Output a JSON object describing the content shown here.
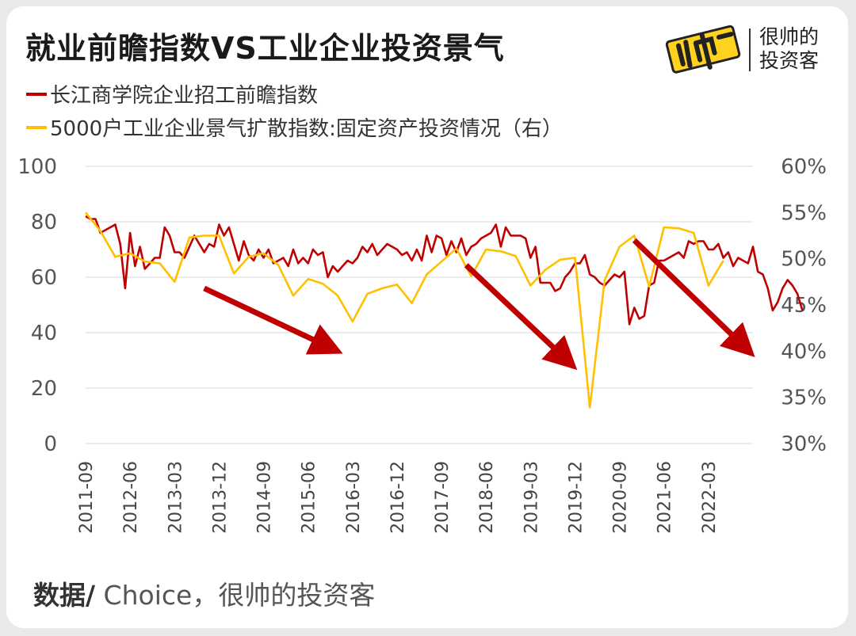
{
  "title": "就业前瞻指数VS工业企业投资景气",
  "brand": {
    "logo_text": "帅",
    "line1": "很帅的",
    "line2": "投资客"
  },
  "legend": [
    {
      "label": "长江商学院企业招工前瞻指数",
      "color": "#c00000"
    },
    {
      "label": "5000户工业企业景气扩散指数:固定资产投资情况（右）",
      "color": "#ffc000"
    }
  ],
  "source": {
    "prefix": "数据/",
    "text": " Choice，很帅的投资客"
  },
  "chart_data": {
    "type": "line",
    "left_axis": {
      "ticks": [
        "0",
        "20",
        "40",
        "60",
        "80",
        "100"
      ],
      "ylim": [
        0,
        100
      ]
    },
    "right_axis": {
      "ticks": [
        "30%",
        "35%",
        "40%",
        "45%",
        "50%",
        "55%",
        "60%"
      ],
      "ylim": [
        30,
        60
      ]
    },
    "x_ticks": [
      "2011-09",
      "2012-06",
      "2013-03",
      "2013-12",
      "2014-09",
      "2015-06",
      "2016-03",
      "2016-12",
      "2017-09",
      "2018-06",
      "2019-03",
      "2019-12",
      "2020-09",
      "2021-06",
      "2022-03"
    ],
    "x_start": "2011-09",
    "x_end": "2022-12",
    "grid": true,
    "series": [
      {
        "name": "长江商学院企业招工前瞻指数",
        "axis": "left",
        "color": "#c00000",
        "values": [
          82,
          81,
          81,
          76,
          77,
          78,
          79,
          72,
          56,
          76,
          64,
          71,
          63,
          65,
          67,
          67,
          78,
          75,
          69,
          69,
          67,
          71,
          75,
          72,
          69,
          72,
          71,
          79,
          75,
          78,
          72,
          66,
          73,
          68,
          66,
          70,
          67,
          70,
          65,
          66,
          67,
          64,
          70,
          65,
          67,
          65,
          70,
          68,
          69,
          60,
          64,
          62,
          64,
          66,
          65,
          67,
          71,
          69,
          72,
          68,
          70,
          72,
          71,
          70,
          68,
          69,
          66,
          70,
          66,
          75,
          69,
          75,
          74,
          68,
          73,
          69,
          74,
          68,
          71,
          72,
          74,
          75,
          76,
          79,
          71,
          78,
          75,
          75,
          75,
          74,
          67,
          71,
          58,
          58,
          58,
          55,
          56,
          60,
          62,
          65,
          65,
          68,
          61,
          60,
          58,
          57,
          59,
          61,
          60,
          62,
          43,
          49,
          45,
          46,
          57,
          58,
          66,
          66,
          67,
          68,
          69,
          67,
          73,
          72,
          73,
          73,
          70,
          70,
          72,
          67,
          69,
          64,
          67,
          66,
          65,
          71,
          62,
          61,
          56,
          48,
          51,
          56,
          59,
          57,
          54,
          48
        ]
      },
      {
        "name": "5000户工业企业景气扩散指数:固定资产投资情况（右）",
        "axis": "right",
        "color": "#ffc000",
        "values": [
          55.0,
          null,
          null,
          53.0,
          null,
          null,
          50.2,
          null,
          null,
          50.6,
          null,
          null,
          49.7,
          null,
          null,
          49.5,
          null,
          null,
          47.5,
          null,
          null,
          52.3,
          null,
          null,
          52.5,
          null,
          null,
          52.5,
          null,
          null,
          48.4,
          null,
          null,
          50.2,
          null,
          null,
          50.6,
          null,
          null,
          49.3,
          null,
          null,
          46.0,
          null,
          null,
          47.8,
          null,
          null,
          47.3,
          null,
          null,
          46.0,
          null,
          null,
          43.2,
          null,
          null,
          46.2,
          null,
          null,
          46.8,
          null,
          null,
          47.2,
          null,
          null,
          45.2,
          null,
          null,
          48.3,
          null,
          null,
          49.7,
          null,
          null,
          51.1,
          null,
          null,
          48.1,
          null,
          null,
          51.0,
          null,
          null,
          50.8,
          null,
          null,
          50.3,
          null,
          null,
          47.1,
          null,
          null,
          48.8,
          null,
          null,
          49.9,
          null,
          null,
          50.1,
          null,
          null,
          33.9,
          null,
          null,
          47.7,
          null,
          null,
          51.3,
          null,
          null,
          52.5,
          null,
          null,
          47.0,
          null,
          null,
          53.4,
          null,
          null,
          53.3,
          null,
          null,
          52.8,
          null,
          null,
          47.1,
          null,
          null,
          49.8
        ]
      }
    ],
    "annotations": [
      {
        "type": "arrow",
        "color": "#c00000",
        "from": [
          "2013-09",
          46.8
        ],
        "to": [
          "2015-10",
          40.5
        ]
      },
      {
        "type": "arrow",
        "color": "#c00000",
        "from": [
          "2018-02",
          49.3
        ],
        "to": [
          "2019-10",
          39.2
        ]
      },
      {
        "type": "arrow",
        "color": "#c00000",
        "from": [
          "2020-12",
          52.0
        ],
        "to": [
          "2022-10",
          40.6
        ]
      }
    ]
  }
}
